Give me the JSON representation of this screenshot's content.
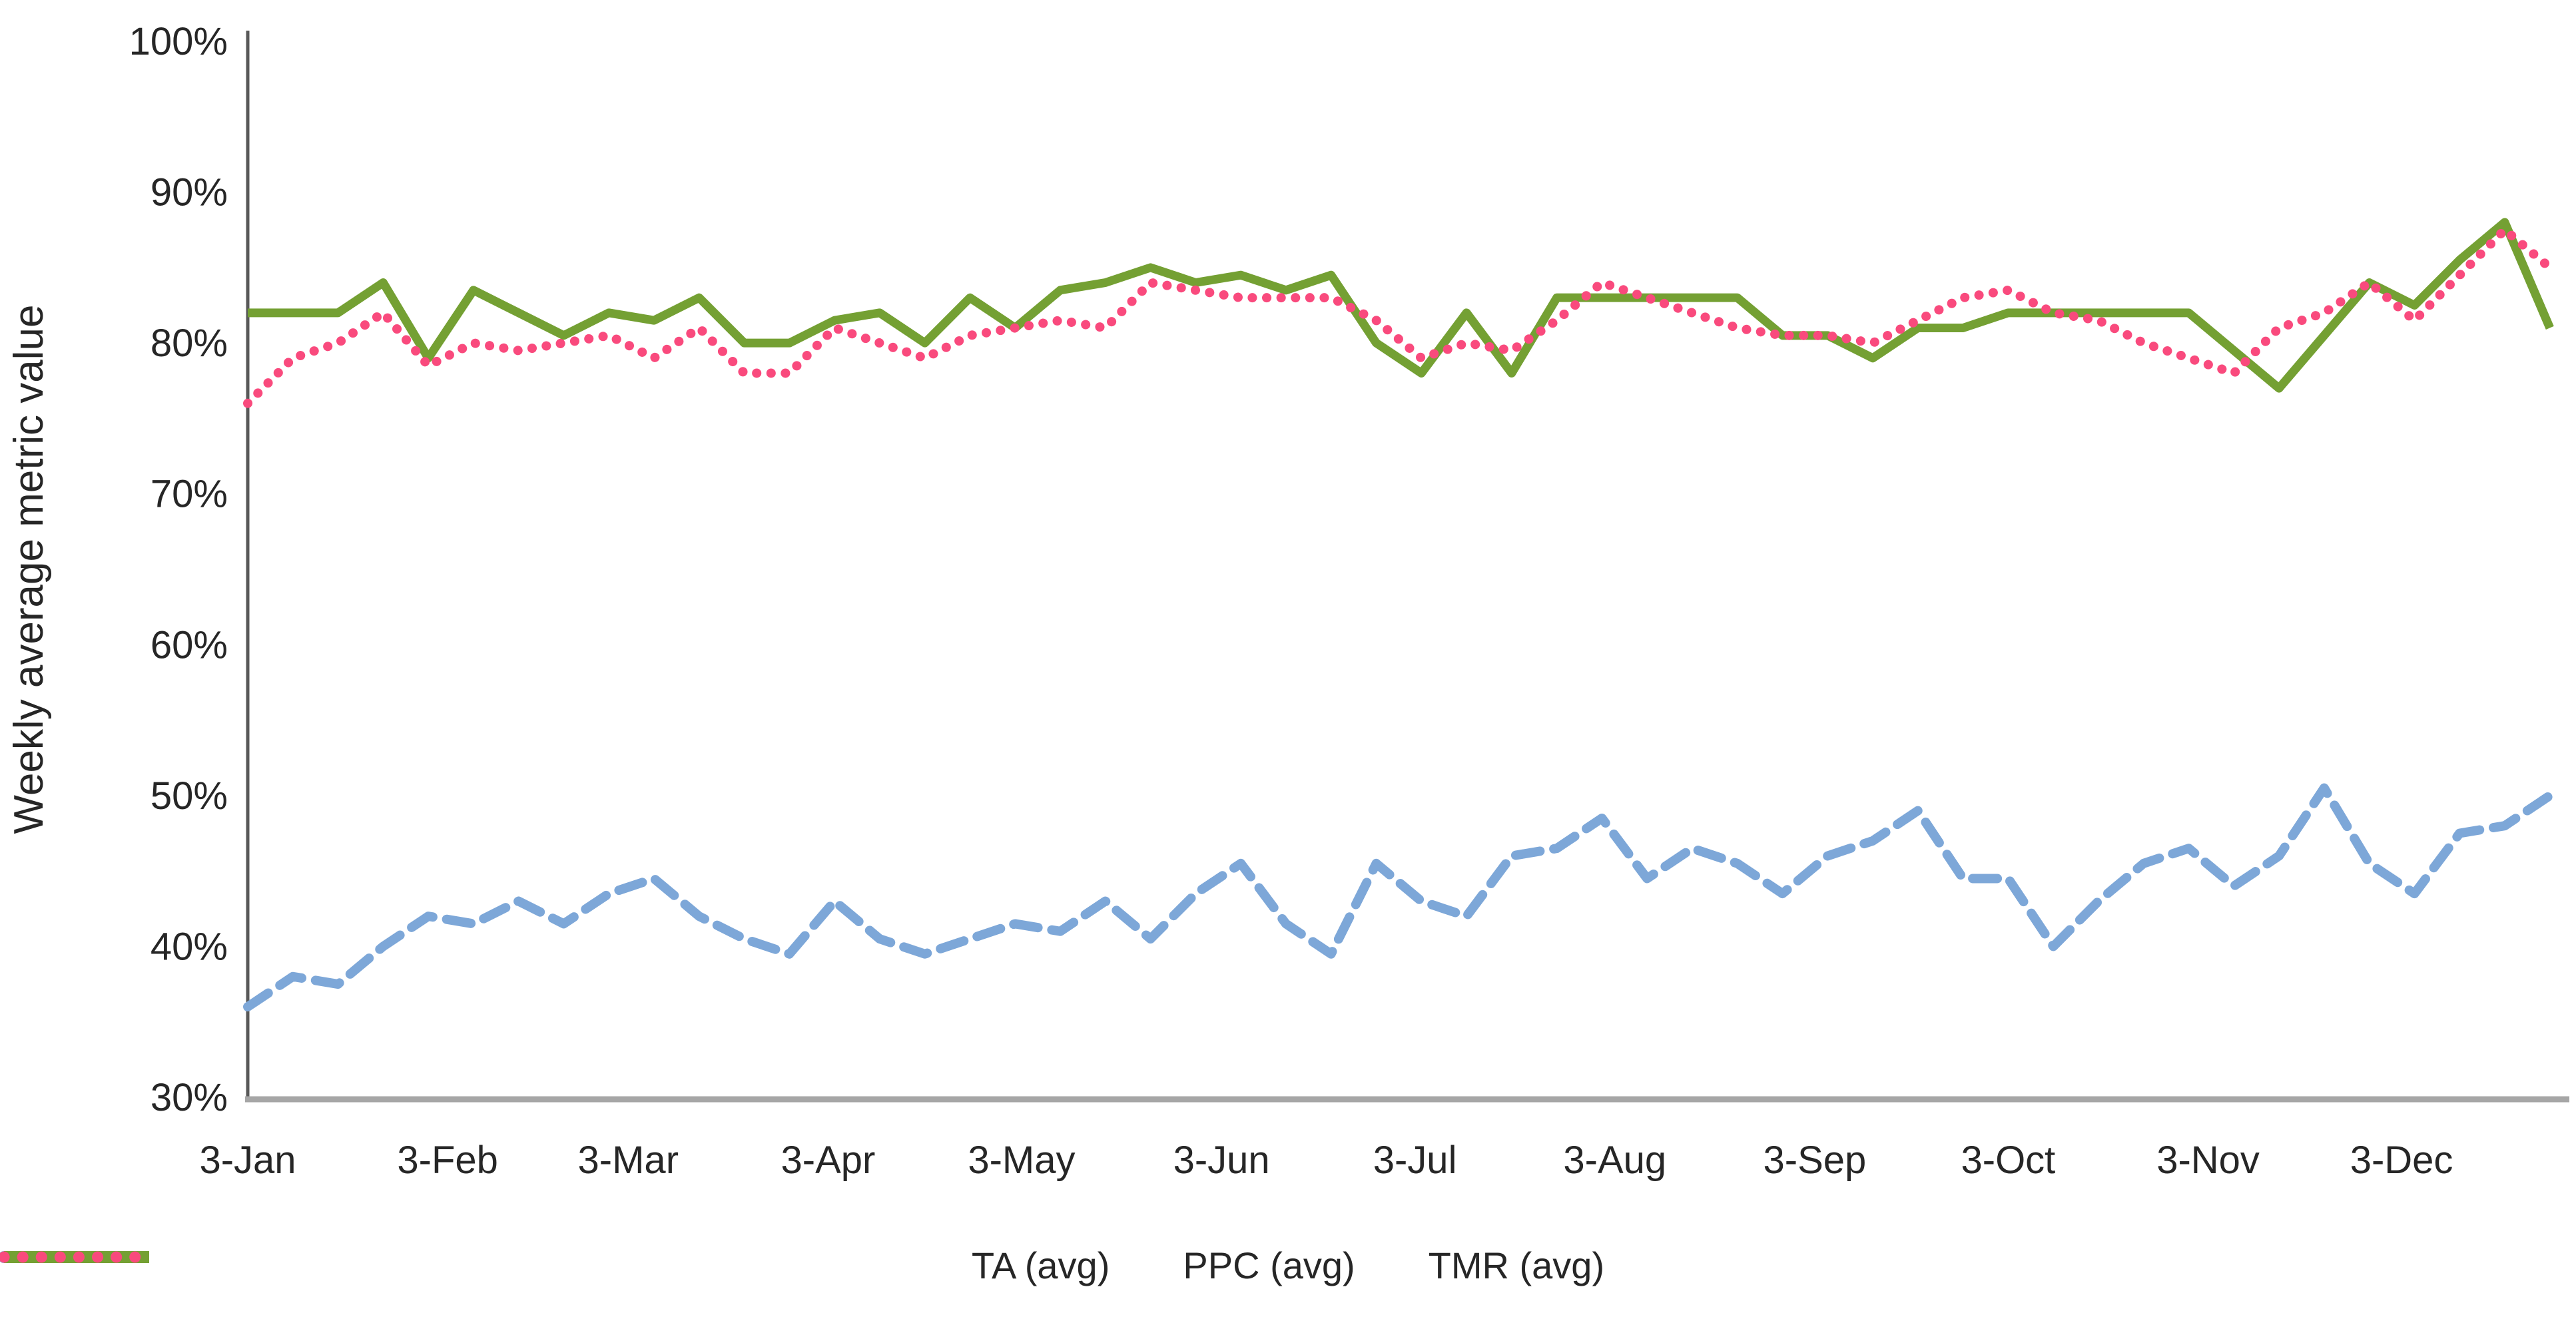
{
  "chart_data": {
    "type": "line",
    "title": "",
    "ylabel": "Weekly average metric value",
    "xlabel": "",
    "ylim": [
      30,
      100
    ],
    "grid": false,
    "legend_position": "bottom",
    "y_ticks": [
      "30%",
      "40%",
      "50%",
      "60%",
      "70%",
      "80%",
      "90%",
      "100%"
    ],
    "x_tick_labels": [
      "3-Jan",
      "3-Feb",
      "3-Mar",
      "3-Apr",
      "3-May",
      "3-Jun",
      "3-Jul",
      "3-Aug",
      "3-Sep",
      "3-Oct",
      "3-Nov",
      "3-Dec"
    ],
    "x_unit": "weekly points, 52 weeks starting 3-Jan",
    "axis_colors": {
      "y_axis_line": "#595959",
      "x_axis_line": "#A6A6A6",
      "tick_text": "#262626"
    },
    "series": [
      {
        "name": "TA (avg)",
        "color": "#7DA7D8",
        "style": "dashed",
        "values": [
          36,
          38,
          37.5,
          40,
          42,
          41.5,
          43,
          41.5,
          43.5,
          44.5,
          42,
          40.5,
          39.5,
          43,
          40.5,
          39.5,
          40.5,
          41.5,
          41,
          43,
          40.5,
          43.5,
          45.5,
          41.5,
          39.5,
          45.5,
          43,
          42,
          46,
          46.5,
          48.5,
          44.5,
          46.5,
          45.5,
          43.5,
          46,
          47,
          49,
          44.5,
          44.5,
          40,
          43,
          45.5,
          46.5,
          44,
          46,
          50.5,
          45.5,
          43.5,
          47.5,
          48,
          50
        ]
      },
      {
        "name": "PPC (avg)",
        "color": "#74A033",
        "style": "solid",
        "values": [
          82,
          82,
          82,
          84,
          79,
          83.5,
          82,
          80.5,
          82,
          81.5,
          83,
          80,
          80,
          81.5,
          82,
          80,
          83,
          81,
          83.5,
          84,
          85,
          84,
          84.5,
          83.5,
          84.5,
          80,
          78,
          82,
          78,
          83,
          83,
          83,
          83,
          83,
          80.5,
          80.5,
          79,
          81,
          81,
          82,
          82,
          82,
          82,
          82,
          79.5,
          77,
          80.5,
          84,
          82.5,
          85.5,
          88,
          81
        ]
      },
      {
        "name": "TMR (avg)",
        "color": "#F94A7D",
        "style": "dotted",
        "values": [
          76,
          79,
          80,
          82,
          78.5,
          80,
          79.5,
          80,
          80.5,
          79,
          81,
          78,
          78,
          81,
          80,
          79,
          80.5,
          81,
          81.5,
          81,
          84,
          83.5,
          83,
          83,
          83,
          81.5,
          79,
          80,
          79.5,
          81.5,
          84,
          83,
          82,
          81,
          80.5,
          80.5,
          80,
          81.5,
          83,
          83.5,
          82,
          81.5,
          80,
          79,
          78,
          81,
          82,
          84,
          81.5,
          84.5,
          87.5,
          85
        ]
      }
    ]
  },
  "legend": {
    "items": [
      {
        "label": "TA (avg)"
      },
      {
        "label": "PPC (avg)"
      },
      {
        "label": "TMR (avg)"
      }
    ]
  }
}
